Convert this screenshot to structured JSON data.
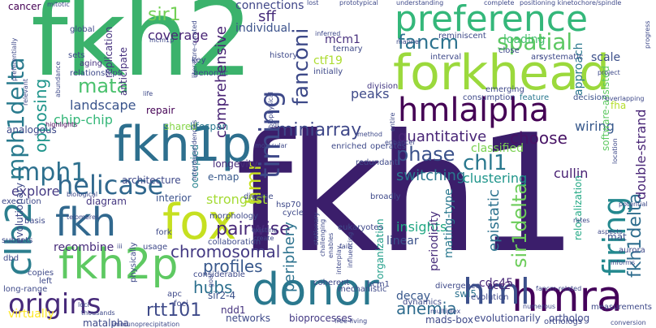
{
  "words": [
    {
      "text": "fkh1",
      "color": "#3b1e6b"
    },
    {
      "text": "fkh2",
      "color": "#3bb26c"
    },
    {
      "text": "forkhead",
      "color": "#9bd93c"
    },
    {
      "text": "preference",
      "color": "#34b77a"
    },
    {
      "text": "fox",
      "color": "#c6e020"
    },
    {
      "text": "fkh1p",
      "color": "#2d6f8e"
    },
    {
      "text": "donor",
      "color": "#2a788e"
    },
    {
      "text": "hmra",
      "color": "#44015a"
    },
    {
      "text": "hmlalpha",
      "color": "#440154"
    },
    {
      "text": "fkh2p",
      "color": "#5ec962"
    },
    {
      "text": "clb2",
      "color": "#2c7e8e"
    },
    {
      "text": "fkh",
      "color": "#31688e"
    },
    {
      "text": "timing",
      "color": "#3e4989"
    },
    {
      "text": "firing",
      "color": "#23888e"
    },
    {
      "text": "origins",
      "color": "#472a7a"
    },
    {
      "text": "helicase",
      "color": "#31688e"
    },
    {
      "text": "mph1",
      "color": "#2d708e"
    },
    {
      "text": "mph1delta",
      "color": "#2a7b8e"
    },
    {
      "text": "hml",
      "color": "#3c508b"
    },
    {
      "text": "spatial",
      "color": "#5cc863"
    },
    {
      "text": "miniarray",
      "color": "#3f4889"
    },
    {
      "text": "fkh1delta",
      "color": "#2e6d8e"
    },
    {
      "text": "sir1delta",
      "color": "#6ccd5a"
    },
    {
      "text": "chl1",
      "color": "#2a788e"
    },
    {
      "text": "hmr",
      "color": "#c8e020"
    },
    {
      "text": "fanconi",
      "color": "#3e4a89"
    },
    {
      "text": "fancm",
      "color": "#2c728e"
    },
    {
      "text": "mata",
      "color": "#4ac16d"
    },
    {
      "text": "phase",
      "color": "#3b528b"
    },
    {
      "text": "sir1",
      "color": "#73d056"
    },
    {
      "text": "profiles",
      "color": "#38588c"
    },
    {
      "text": "pairwise",
      "color": "#472878"
    },
    {
      "text": "rtt101",
      "color": "#3e4a89"
    },
    {
      "text": "chromosomal",
      "color": "#443a83"
    },
    {
      "text": "anemia",
      "color": "#2f6c8e"
    },
    {
      "text": "opposing",
      "color": "#1f958b"
    },
    {
      "text": "quantitative",
      "color": "#482576"
    },
    {
      "text": "choose",
      "color": "#471365"
    },
    {
      "text": "epistatic",
      "color": "#2c728e"
    },
    {
      "text": "hubs",
      "color": "#2d708e"
    },
    {
      "text": "comprehensive",
      "color": "#482374"
    },
    {
      "text": "periphery",
      "color": "#2c728e"
    },
    {
      "text": "switching",
      "color": "#2a788e"
    },
    {
      "text": "coverage",
      "color": "#482475"
    },
    {
      "text": "sff",
      "color": "#472d7b"
    },
    {
      "text": "individual",
      "color": "#3b528b"
    },
    {
      "text": "connections",
      "color": "#404688"
    },
    {
      "text": "insights",
      "color": "#22a884"
    },
    {
      "text": "timing2",
      "color": "#3e4989"
    },
    {
      "text": "landscape",
      "color": "#3a548c"
    },
    {
      "text": "chip-chip",
      "color": "#35b779"
    },
    {
      "text": "recombine",
      "color": "#472c7a"
    },
    {
      "text": "explore",
      "color": "#443983"
    },
    {
      "text": "strongest",
      "color": "#a5db36"
    },
    {
      "text": "clustering",
      "color": "#1f958b"
    },
    {
      "text": "classified",
      "color": "#7ad151"
    },
    {
      "text": "cullin",
      "color": "#482173"
    },
    {
      "text": "wiring",
      "color": "#38598c"
    },
    {
      "text": "double-strand",
      "color": "#482576"
    },
    {
      "text": "mating-type",
      "color": "#2a788e"
    },
    {
      "text": "periodicity",
      "color": "#472d7b"
    },
    {
      "text": "decay",
      "color": "#38588c"
    },
    {
      "text": "linear",
      "color": "#3b528b"
    },
    {
      "text": "cdc45",
      "color": "#482878"
    },
    {
      "text": "approach",
      "color": "#2a778e"
    },
    {
      "text": "loading",
      "color": "#46c06f"
    },
    {
      "text": "scale",
      "color": "#3c4f8a"
    },
    {
      "text": "peaks",
      "color": "#3e4a89"
    },
    {
      "text": "mcm1",
      "color": "#472f7d"
    },
    {
      "text": "ctf19",
      "color": "#addc30"
    },
    {
      "text": "sir2-4",
      "color": "#3b528b"
    },
    {
      "text": "ndd1",
      "color": "#46337f"
    },
    {
      "text": "networks",
      "color": "#3e4989"
    },
    {
      "text": "bioprocesses",
      "color": "#443983"
    },
    {
      "text": "swi5",
      "color": "#2c728e"
    },
    {
      "text": "hcm1",
      "color": "#3e4989"
    },
    {
      "text": "ace2",
      "color": "#482071"
    },
    {
      "text": "mat",
      "color": "#3b528b"
    },
    {
      "text": "fha",
      "color": "#b5de2b"
    },
    {
      "text": "aurora",
      "color": "#3e4989"
    },
    {
      "text": "organization",
      "color": "#1f9e89"
    },
    {
      "text": "diagram",
      "color": "#453781"
    },
    {
      "text": "evolutionary",
      "color": "#3e4989"
    },
    {
      "text": "interior",
      "color": "#3b528b"
    },
    {
      "text": "occupied",
      "color": "#26828e"
    },
    {
      "text": "e-map",
      "color": "#38598c"
    },
    {
      "text": "relocalization",
      "color": "#22a884"
    },
    {
      "text": "longevity",
      "color": "#472c7a"
    },
    {
      "text": "architecture",
      "color": "#3e4989"
    },
    {
      "text": "lifespan",
      "color": "#2a788e"
    },
    {
      "text": "shared",
      "color": "#86d549"
    },
    {
      "text": "repair",
      "color": "#440154"
    },
    {
      "text": "cancer",
      "color": "#440154"
    },
    {
      "text": "global",
      "color": "#3e4989"
    },
    {
      "text": "replication",
      "color": "#46327e"
    },
    {
      "text": "anticipate",
      "color": "#46307e"
    },
    {
      "text": "relationships",
      "color": "#3e4989"
    },
    {
      "text": "aging",
      "color": "#46327e"
    },
    {
      "text": "sets",
      "color": "#3e4989"
    },
    {
      "text": "analogous",
      "color": "#3e4989"
    },
    {
      "text": "highlights",
      "color": "#440154"
    },
    {
      "text": "software-assisted",
      "color": "#5ec962"
    },
    {
      "text": "consumption",
      "color": "#3e4989"
    },
    {
      "text": "decision",
      "color": "#3b528b"
    },
    {
      "text": "feature",
      "color": "#2a788e"
    },
    {
      "text": "emerging",
      "color": "#3e4989"
    },
    {
      "text": "division",
      "color": "#443983"
    },
    {
      "text": "interval",
      "color": "#3e4989"
    },
    {
      "text": "systematic",
      "color": "#3e4989"
    },
    {
      "text": "ars",
      "color": "#3e4989"
    },
    {
      "text": "close",
      "color": "#3e4989"
    },
    {
      "text": "reminiscent",
      "color": "#3e4989"
    },
    {
      "text": "manner",
      "color": "#3e4989"
    },
    {
      "text": "ternary",
      "color": "#3e4989"
    },
    {
      "text": "initially",
      "color": "#3e4989"
    },
    {
      "text": "history",
      "color": "#3e4989"
    },
    {
      "text": "genomic",
      "color": "#3e4989"
    },
    {
      "text": "key",
      "color": "#3e4989"
    },
    {
      "text": "mcm1p",
      "color": "#3e4989"
    },
    {
      "text": "conversion",
      "color": "#3e4989"
    },
    {
      "text": "ortholog",
      "color": "#3e4989"
    },
    {
      "text": "ortholog2",
      "color": "#3e4989"
    },
    {
      "text": "virtually",
      "color": "#fde725"
    },
    {
      "text": "long-range",
      "color": "#3e4989"
    },
    {
      "text": "left",
      "color": "#3e4989"
    },
    {
      "text": "copies",
      "color": "#3e4989"
    },
    {
      "text": "dbd",
      "color": "#3e4989"
    },
    {
      "text": "subsets",
      "color": "#3e4989"
    },
    {
      "text": "basis",
      "color": "#3e4989"
    },
    {
      "text": "execution",
      "color": "#3e4989"
    },
    {
      "text": "matalpha",
      "color": "#3e4989"
    },
    {
      "text": "apc",
      "color": "#3e4989"
    },
    {
      "text": "foci",
      "color": "#3e4989"
    },
    {
      "text": "considerable",
      "color": "#3e4989"
    },
    {
      "text": "usage",
      "color": "#3e4989"
    },
    {
      "text": "physically",
      "color": "#3e4989"
    },
    {
      "text": "fork",
      "color": "#3e4989"
    },
    {
      "text": "collaboration",
      "color": "#3e4989"
    },
    {
      "text": "morphology",
      "color": "#3e4989"
    },
    {
      "text": "cycle",
      "color": "#3e4989"
    },
    {
      "text": "diverse",
      "color": "#3e4989"
    },
    {
      "text": "hsp70",
      "color": "#3e4989"
    },
    {
      "text": "broadly",
      "color": "#3e4989"
    },
    {
      "text": "eukaryotes",
      "color": "#3e4989"
    },
    {
      "text": "mechanistic",
      "color": "#3e4989"
    },
    {
      "text": "coherent",
      "color": "#3e4989"
    },
    {
      "text": "dynamics",
      "color": "#3e4989"
    },
    {
      "text": "divergence",
      "color": "#3e4989"
    },
    {
      "text": "evolution",
      "color": "#3e4989"
    },
    {
      "text": "measurements",
      "color": "#3e4989"
    },
    {
      "text": "mads-box",
      "color": "#3e4989"
    },
    {
      "text": "evolutionarily",
      "color": "#3e4989"
    },
    {
      "text": "orthologs",
      "color": "#3e4989"
    },
    {
      "text": "multiplex",
      "color": "#3e4989"
    },
    {
      "text": "enriched",
      "color": "#3e4989"
    },
    {
      "text": "operates",
      "color": "#3e4989"
    },
    {
      "text": "redundant",
      "color": "#3e4989"
    },
    {
      "text": "understanding",
      "color": "#3e4989"
    },
    {
      "text": "lost",
      "color": "#3e4989"
    },
    {
      "text": "mitotic",
      "color": "#3e4989"
    },
    {
      "text": "positioning kinetochore/spindle",
      "color": "#3e4989"
    },
    {
      "text": "complete",
      "color": "#3e4989"
    },
    {
      "text": "prototypical",
      "color": "#3e4989"
    },
    {
      "text": "progress",
      "color": "#3e4989"
    },
    {
      "text": "project",
      "color": "#3e4989"
    },
    {
      "text": "overlapping",
      "color": "#3e4989"
    },
    {
      "text": "potential",
      "color": "#3e4989"
    },
    {
      "text": "location",
      "color": "#3e4989"
    },
    {
      "text": "rates",
      "color": "#3e4989"
    },
    {
      "text": "aspects",
      "color": "#3e4989"
    },
    {
      "text": "informs",
      "color": "#3e4989"
    },
    {
      "text": "fancm-related",
      "color": "#3e4989"
    },
    {
      "text": "numerous",
      "color": "#3e4989"
    },
    {
      "text": "free-living",
      "color": "#3e4989"
    },
    {
      "text": "immunoprecipitation",
      "color": "#3e4989"
    },
    {
      "text": "stationary",
      "color": "#3e4989"
    },
    {
      "text": "challenging",
      "color": "#3e4989"
    },
    {
      "text": "enables",
      "color": "#3e4989"
    },
    {
      "text": "interplay",
      "color": "#3e4989"
    },
    {
      "text": "influencing",
      "color": "#3e4989"
    },
    {
      "text": "biophysical",
      "color": "#3e4989"
    },
    {
      "text": "interdependencies",
      "color": "#3e4989"
    },
    {
      "text": "entire",
      "color": "#3e4989"
    },
    {
      "text": "method",
      "color": "#3e4989"
    },
    {
      "text": "enhancer",
      "color": "#3e4989"
    },
    {
      "text": "molecular",
      "color": "#3e4989"
    },
    {
      "text": "biological",
      "color": "#3e4989"
    },
    {
      "text": "telomeres",
      "color": "#3e4989"
    },
    {
      "text": "relevant",
      "color": "#3e4989"
    },
    {
      "text": "preferentially",
      "color": "#3e4989"
    },
    {
      "text": "abundance",
      "color": "#3e4989"
    },
    {
      "text": "literature-curated",
      "color": "#3e4989"
    },
    {
      "text": "inferred",
      "color": "#3e4989"
    },
    {
      "text": "life",
      "color": "#3e4989"
    },
    {
      "text": "fails",
      "color": "#3e4989"
    },
    {
      "text": "create",
      "color": "#3e4989"
    },
    {
      "text": "existing",
      "color": "#3e4989"
    },
    {
      "text": "goal",
      "color": "#3e4989"
    },
    {
      "text": "thousands",
      "color": "#3e4989"
    },
    {
      "text": "loci",
      "color": "#3e4989"
    },
    {
      "text": "gl",
      "color": "#3e4989"
    },
    {
      "text": "iii",
      "color": "#3e4989"
    }
  ]
}
